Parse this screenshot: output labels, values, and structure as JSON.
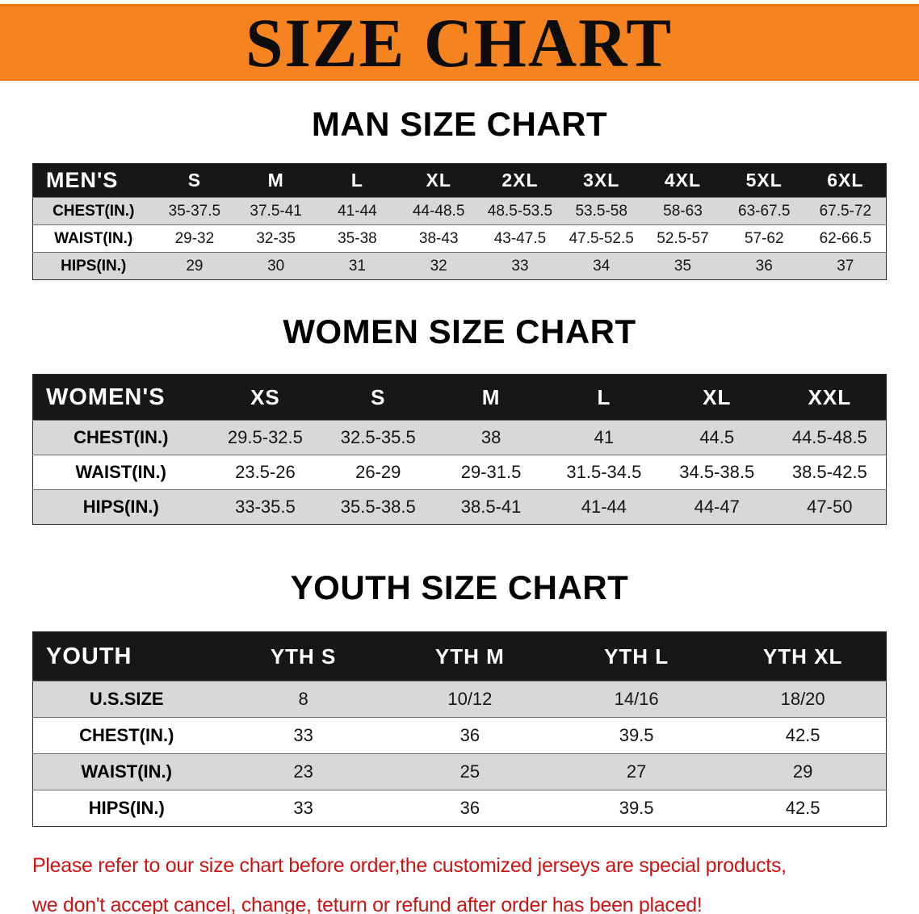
{
  "banner": {
    "title": "SIZE CHART",
    "bg_color": "#f5831f"
  },
  "sections": [
    {
      "heading": "MAN SIZE CHART",
      "table": {
        "header": [
          "MEN'S",
          "S",
          "M",
          "L",
          "XL",
          "2XL",
          "3XL",
          "4XL",
          "5XL",
          "6XL"
        ],
        "rows": [
          [
            "CHEST(IN.)",
            "35-37.5",
            "37.5-41",
            "41-44",
            "44-48.5",
            "48.5-53.5",
            "53.5-58",
            "58-63",
            "63-67.5",
            "67.5-72"
          ],
          [
            "WAIST(IN.)",
            "29-32",
            "32-35",
            "35-38",
            "38-43",
            "43-47.5",
            "47.5-52.5",
            "52.5-57",
            "57-62",
            "62-66.5"
          ],
          [
            "HIPS(IN.)",
            "29",
            "30",
            "31",
            "32",
            "33",
            "34",
            "35",
            "36",
            "37"
          ]
        ]
      }
    },
    {
      "heading": "WOMEN SIZE CHART",
      "table": {
        "header": [
          "WOMEN'S",
          "XS",
          "S",
          "M",
          "L",
          "XL",
          "XXL"
        ],
        "rows": [
          [
            "CHEST(IN.)",
            "29.5-32.5",
            "32.5-35.5",
            "38",
            "41",
            "44.5",
            "44.5-48.5"
          ],
          [
            "WAIST(IN.)",
            "23.5-26",
            "26-29",
            "29-31.5",
            "31.5-34.5",
            "34.5-38.5",
            "38.5-42.5"
          ],
          [
            "HIPS(IN.)",
            "33-35.5",
            "35.5-38.5",
            "38.5-41",
            "41-44",
            "44-47",
            "47-50"
          ]
        ]
      }
    },
    {
      "heading": "YOUTH SIZE CHART",
      "table": {
        "header": [
          "YOUTH",
          "YTH S",
          "YTH M",
          "YTH L",
          "YTH XL"
        ],
        "rows": [
          [
            "U.S.SIZE",
            "8",
            "10/12",
            "14/16",
            "18/20"
          ],
          [
            "CHEST(IN.)",
            "33",
            "36",
            "39.5",
            "42.5"
          ],
          [
            "WAIST(IN.)",
            "23",
            "25",
            "27",
            "29"
          ],
          [
            "HIPS(IN.)",
            "33",
            "36",
            "39.5",
            "42.5"
          ]
        ]
      }
    }
  ],
  "footer": {
    "line1": "Please refer to our size chart before order,the customized jerseys are special products,",
    "line2": "we don't accept cancel, change, teturn or refund after order has been placed!",
    "color": "#cc1414"
  }
}
